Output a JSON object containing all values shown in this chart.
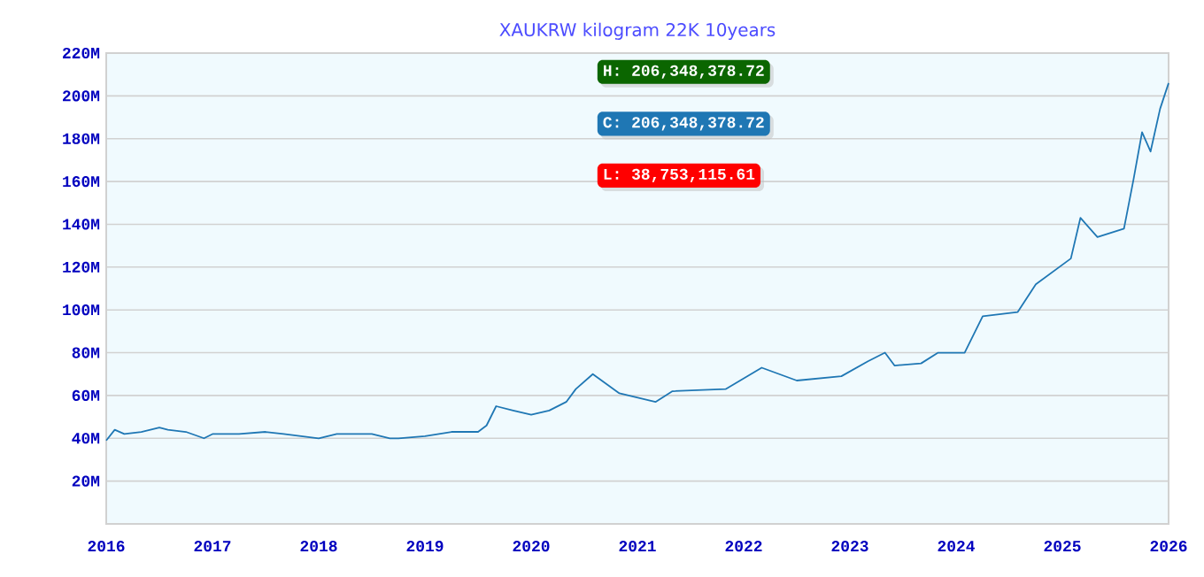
{
  "chart_data": {
    "type": "line",
    "title": "XAUKRW kilogram 22K 10years",
    "x": [
      "2016-01",
      "2016-02",
      "2016-03",
      "2016-05",
      "2016-07",
      "2016-08",
      "2016-10",
      "2016-12",
      "2017-01",
      "2017-04",
      "2017-07",
      "2017-09",
      "2018-01",
      "2018-03",
      "2018-07",
      "2018-09",
      "2018-10",
      "2019-01",
      "2019-04",
      "2019-07",
      "2019-08",
      "2019-09",
      "2019-11",
      "2020-01",
      "2020-03",
      "2020-05",
      "2020-06",
      "2020-08",
      "2020-11",
      "2021-03",
      "2021-05",
      "2021-11",
      "2022-03",
      "2022-07",
      "2022-12",
      "2023-03",
      "2023-05",
      "2023-06",
      "2023-09",
      "2023-11",
      "2024-02",
      "2024-04",
      "2024-08",
      "2024-10",
      "2025-02",
      "2025-03",
      "2025-05",
      "2025-08",
      "2025-09",
      "2025-10",
      "2025-11",
      "2025-12",
      "2026-01"
    ],
    "series": [
      {
        "color": "#1f77b4",
        "values": [
          39,
          44,
          42,
          43,
          45,
          44,
          43,
          40,
          42,
          42,
          43,
          42,
          40,
          42,
          42,
          40,
          40,
          41,
          43,
          43,
          46,
          55,
          53,
          51,
          53,
          57,
          63,
          70,
          61,
          57,
          62,
          63,
          73,
          67,
          69,
          76,
          80,
          74,
          75,
          80,
          80,
          97,
          99,
          112,
          124,
          143,
          134,
          138,
          161,
          183,
          174,
          194,
          206
        ]
      }
    ],
    "xlim": [
      "2016-01",
      "2026-01"
    ],
    "xticks": [
      "2016",
      "2017",
      "2018",
      "2019",
      "2020",
      "2021",
      "2022",
      "2023",
      "2024",
      "2025",
      "2026"
    ],
    "ylim": [
      0,
      220
    ],
    "yticks": [
      {
        "value": 20,
        "label": "20M"
      },
      {
        "value": 40,
        "label": "40M"
      },
      {
        "value": 60,
        "label": "60M"
      },
      {
        "value": 80,
        "label": "80M"
      },
      {
        "value": 100,
        "label": "100M"
      },
      {
        "value": 120,
        "label": "120M"
      },
      {
        "value": 140,
        "label": "140M"
      },
      {
        "value": 160,
        "label": "160M"
      },
      {
        "value": 180,
        "label": "180M"
      },
      {
        "value": 200,
        "label": "200M"
      },
      {
        "value": 220,
        "label": "220M"
      }
    ],
    "grid": "y",
    "line_style": "solid",
    "marker": "none",
    "annotations": [
      "H: 206,348,378.72",
      "C: 206,348,378.72",
      "L: 38,753,115.61"
    ]
  }
}
